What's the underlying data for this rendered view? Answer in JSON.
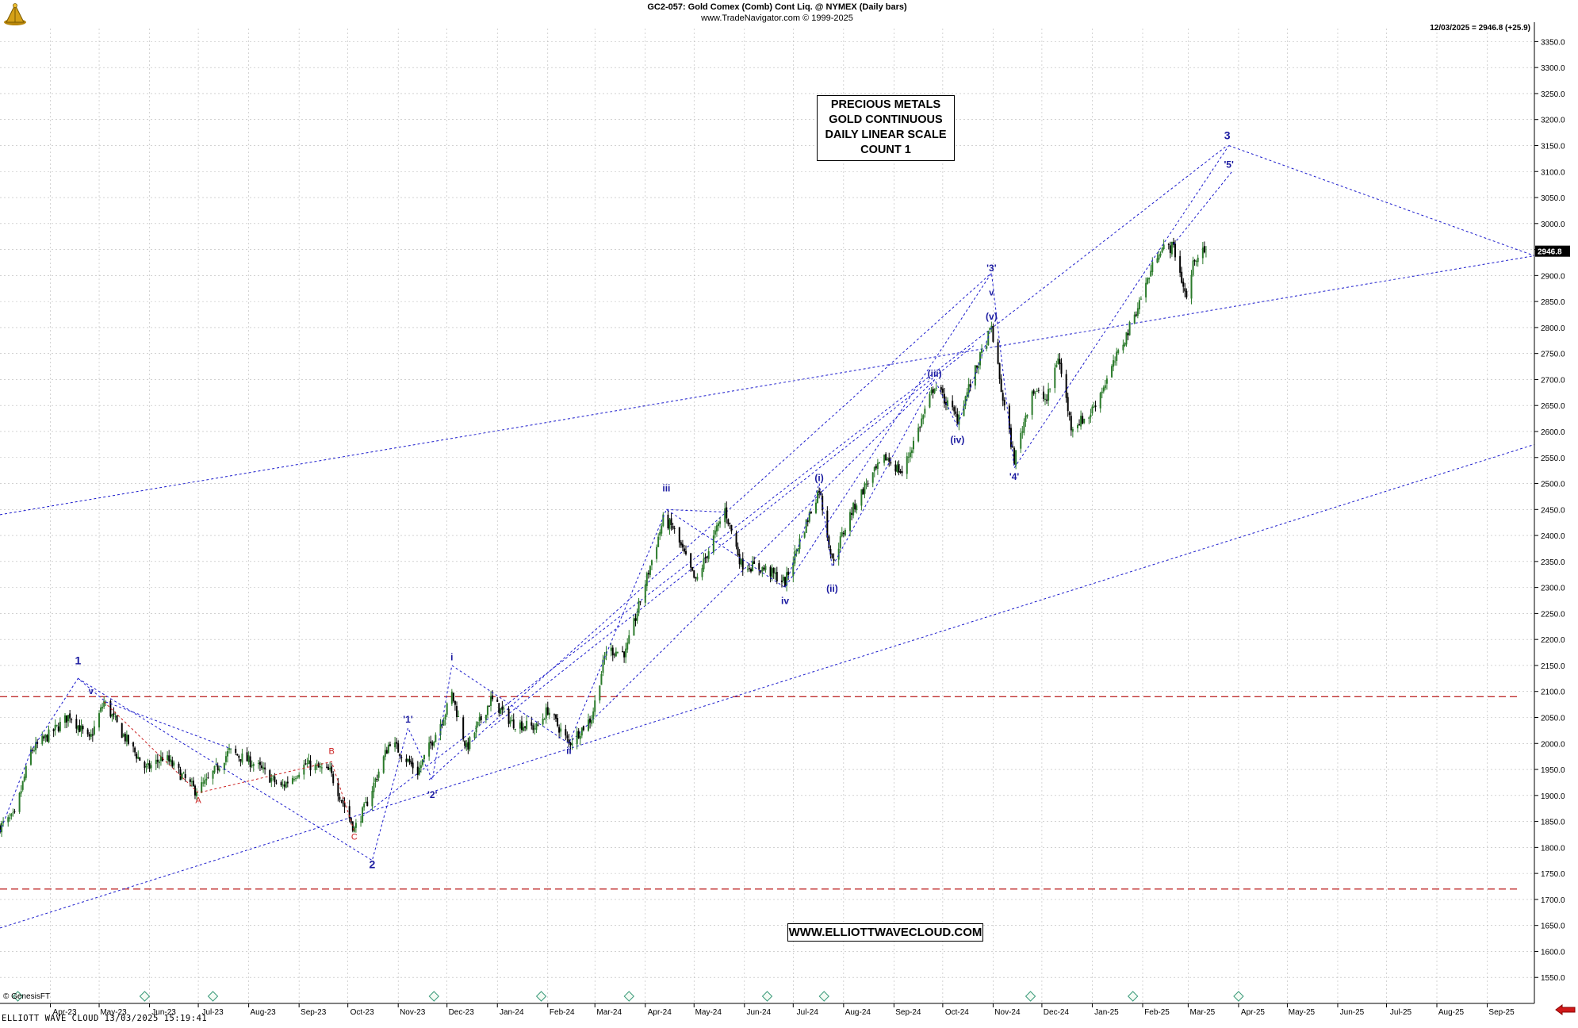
{
  "header": {
    "title": "GC2-057:  Gold Comex (Comb) Cont Liq. @ NYMEX  (Daily bars)",
    "subtitle": "www.TradeNavigator.com © 1999-2025"
  },
  "last_readout": "12/03/2025 = 2946.8 (+25.9)",
  "title_box": [
    "PRECIOUS METALS",
    "GOLD CONTINUOUS",
    "DAILY LINEAR SCALE",
    "COUNT 1"
  ],
  "website": "WWW.ELLIOTTWAVECLOUD.COM",
  "copyright": "© GenesisFT",
  "footer": "ELLIOTT WAVE CLOUD   13/03/2025 15:19:41",
  "colors": {
    "bull_candle": "#2a7a2a",
    "bear_candle": "#000000",
    "wave_label": "#1a1aa0",
    "corrective_label": "#cc2222",
    "trend_line": "#1a1acc",
    "support_line": "#c03030",
    "grid": "#b8b8b8",
    "background": "#ffffff"
  },
  "chart_data": {
    "type": "candlestick",
    "instrument": "GC2-057 Gold Comex (Comb) Cont Liq. @ NYMEX",
    "interval": "Daily bars",
    "scale": "linear",
    "ylim": [
      1500,
      3375
    ],
    "y_ticks": [
      1550,
      1600,
      1650,
      1700,
      1750,
      1800,
      1850,
      1900,
      1950,
      2000,
      2050,
      2100,
      2150,
      2200,
      2250,
      2300,
      2350,
      2400,
      2450,
      2500,
      2550,
      2600,
      2650,
      2700,
      2750,
      2800,
      2850,
      2900,
      2950,
      3000,
      3050,
      3100,
      3150,
      3200,
      3250,
      3300,
      3350
    ],
    "y_tick_labels": [
      "1550.0",
      "1600.0",
      "1650.0",
      "1700.0",
      "1750.0",
      "1800.0",
      "1850.0",
      "1900.0",
      "1950.0",
      "2000.0",
      "2050.0",
      "2100.0",
      "2150.0",
      "2200.0",
      "2250.0",
      "2300.0",
      "2350.0",
      "2400.0",
      "2450.0",
      "2500.0",
      "2550.0",
      "2600.0",
      "2650.0",
      "2700.0",
      "2750.0",
      "2800.0",
      "2850.0",
      "2900.0",
      "2950.0",
      "3000.0",
      "3050.0",
      "3100.0",
      "3150.0",
      "3200.0",
      "3250.0",
      "3300.0",
      "3350.0"
    ],
    "x_range": [
      "2023-03-01",
      "2025-09-30"
    ],
    "x_labels": [
      {
        "label": "Apr-23",
        "date": "2023-04-01"
      },
      {
        "label": "May-23",
        "date": "2023-05-01"
      },
      {
        "label": "Jun-23",
        "date": "2023-06-01"
      },
      {
        "label": "Jul-23",
        "date": "2023-07-01"
      },
      {
        "label": "Aug-23",
        "date": "2023-08-01"
      },
      {
        "label": "Sep-23",
        "date": "2023-09-01"
      },
      {
        "label": "Oct-23",
        "date": "2023-10-01"
      },
      {
        "label": "Nov-23",
        "date": "2023-11-01"
      },
      {
        "label": "Dec-23",
        "date": "2023-12-01"
      },
      {
        "label": "Jan-24",
        "date": "2024-01-01"
      },
      {
        "label": "Feb-24",
        "date": "2024-02-01"
      },
      {
        "label": "Mar-24",
        "date": "2024-03-01"
      },
      {
        "label": "Apr-24",
        "date": "2024-04-01"
      },
      {
        "label": "May-24",
        "date": "2024-05-01"
      },
      {
        "label": "Jun-24",
        "date": "2024-06-01"
      },
      {
        "label": "Jul-24",
        "date": "2024-07-01"
      },
      {
        "label": "Aug-24",
        "date": "2024-08-01"
      },
      {
        "label": "Sep-24",
        "date": "2024-09-01"
      },
      {
        "label": "Oct-24",
        "date": "2024-10-01"
      },
      {
        "label": "Nov-24",
        "date": "2024-11-01"
      },
      {
        "label": "Dec-24",
        "date": "2024-12-01"
      },
      {
        "label": "Jan-25",
        "date": "2025-01-01"
      },
      {
        "label": "Feb-25",
        "date": "2025-02-01"
      },
      {
        "label": "Mar-25",
        "date": "2025-03-01"
      },
      {
        "label": "Apr-25",
        "date": "2025-04-01"
      },
      {
        "label": "May-25",
        "date": "2025-05-01"
      },
      {
        "label": "Jun-25",
        "date": "2025-06-01"
      },
      {
        "label": "Jul-25",
        "date": "2025-07-01"
      },
      {
        "label": "Aug-25",
        "date": "2025-08-01"
      },
      {
        "label": "Sep-25",
        "date": "2025-09-01"
      }
    ],
    "price_path": [
      [
        "2023-03-01",
        1840
      ],
      [
        "2023-03-10",
        1860
      ],
      [
        "2023-03-20",
        1985
      ],
      [
        "2023-04-05",
        2030
      ],
      [
        "2023-04-13",
        2055
      ],
      [
        "2023-04-25",
        2005
      ],
      [
        "2023-05-04",
        2080
      ],
      [
        "2023-05-15",
        2020
      ],
      [
        "2023-05-30",
        1950
      ],
      [
        "2023-06-10",
        1975
      ],
      [
        "2023-06-29",
        1910
      ],
      [
        "2023-07-06",
        1925
      ],
      [
        "2023-07-20",
        1985
      ],
      [
        "2023-08-05",
        1960
      ],
      [
        "2023-08-21",
        1915
      ],
      [
        "2023-09-05",
        1960
      ],
      [
        "2023-09-20",
        1945
      ],
      [
        "2023-10-05",
        1835
      ],
      [
        "2023-10-12",
        1880
      ],
      [
        "2023-10-27",
        2005
      ],
      [
        "2023-11-13",
        1945
      ],
      [
        "2023-11-30",
        2060
      ],
      [
        "2023-12-04",
        2095
      ],
      [
        "2023-12-13",
        1990
      ],
      [
        "2023-12-28",
        2085
      ],
      [
        "2024-01-10",
        2040
      ],
      [
        "2024-01-25",
        2030
      ],
      [
        "2024-02-01",
        2065
      ],
      [
        "2024-02-14",
        2000
      ],
      [
        "2024-02-28",
        2050
      ],
      [
        "2024-03-08",
        2180
      ],
      [
        "2024-03-20",
        2175
      ],
      [
        "2024-04-12",
        2430
      ],
      [
        "2024-04-18",
        2415
      ],
      [
        "2024-05-02",
        2310
      ],
      [
        "2024-05-20",
        2450
      ],
      [
        "2024-05-30",
        2345
      ],
      [
        "2024-06-14",
        2335
      ],
      [
        "2024-06-26",
        2310
      ],
      [
        "2024-07-05",
        2390
      ],
      [
        "2024-07-17",
        2490
      ],
      [
        "2024-07-25",
        2350
      ],
      [
        "2024-08-05",
        2440
      ],
      [
        "2024-08-15",
        2500
      ],
      [
        "2024-08-27",
        2550
      ],
      [
        "2024-09-06",
        2520
      ],
      [
        "2024-09-26",
        2690
      ],
      [
        "2024-10-10",
        2625
      ],
      [
        "2024-10-31",
        2800
      ],
      [
        "2024-11-06",
        2680
      ],
      [
        "2024-11-14",
        2545
      ],
      [
        "2024-11-25",
        2680
      ],
      [
        "2024-12-04",
        2660
      ],
      [
        "2024-12-11",
        2745
      ],
      [
        "2024-12-19",
        2610
      ],
      [
        "2024-12-30",
        2630
      ],
      [
        "2025-01-10",
        2700
      ],
      [
        "2025-01-24",
        2800
      ],
      [
        "2025-02-11",
        2950
      ],
      [
        "2025-02-20",
        2955
      ],
      [
        "2025-02-28",
        2855
      ],
      [
        "2025-03-05",
        2935
      ],
      [
        "2025-03-12",
        2946.8
      ]
    ],
    "last_close": 2946.8,
    "last_change": 25.9,
    "last_date": "12/03/2025",
    "wave_labels": [
      {
        "text": "1",
        "date": "2023-04-18",
        "price": 2152,
        "color": "wave",
        "bold": true,
        "size": 14
      },
      {
        "text": "v",
        "date": "2023-04-26",
        "price": 2095,
        "color": "wave",
        "bold": true,
        "size": 11
      },
      {
        "text": "A",
        "date": "2023-07-01",
        "price": 1885,
        "color": "corrective",
        "bold": false,
        "size": 11
      },
      {
        "text": "B",
        "date": "2023-09-21",
        "price": 1980,
        "color": "corrective",
        "bold": false,
        "size": 11
      },
      {
        "text": "C",
        "date": "2023-10-05",
        "price": 1815,
        "color": "corrective",
        "bold": false,
        "size": 11
      },
      {
        "text": "2",
        "date": "2023-10-16",
        "price": 1760,
        "color": "wave",
        "bold": true,
        "size": 14
      },
      {
        "text": "'1'",
        "date": "2023-11-07",
        "price": 2040,
        "color": "wave",
        "bold": true,
        "size": 12
      },
      {
        "text": "'2'",
        "date": "2023-11-22",
        "price": 1895,
        "color": "wave",
        "bold": true,
        "size": 12
      },
      {
        "text": "i",
        "date": "2023-12-04",
        "price": 2160,
        "color": "wave",
        "bold": true,
        "size": 12
      },
      {
        "text": "ii",
        "date": "2024-02-14",
        "price": 1980,
        "color": "wave",
        "bold": true,
        "size": 12
      },
      {
        "text": "iii",
        "date": "2024-04-14",
        "price": 2485,
        "color": "wave",
        "bold": true,
        "size": 12
      },
      {
        "text": "iv",
        "date": "2024-06-26",
        "price": 2268,
        "color": "wave",
        "bold": true,
        "size": 12
      },
      {
        "text": "(i)",
        "date": "2024-07-17",
        "price": 2505,
        "color": "wave",
        "bold": true,
        "size": 12
      },
      {
        "text": "(ii)",
        "date": "2024-07-25",
        "price": 2292,
        "color": "wave",
        "bold": true,
        "size": 12
      },
      {
        "text": "(iii)",
        "date": "2024-09-26",
        "price": 2705,
        "color": "wave",
        "bold": true,
        "size": 12
      },
      {
        "text": "(iv)",
        "date": "2024-10-10",
        "price": 2578,
        "color": "wave",
        "bold": true,
        "size": 12
      },
      {
        "text": "'3'",
        "date": "2024-10-31",
        "price": 2908,
        "color": "wave",
        "bold": true,
        "size": 12
      },
      {
        "text": "v",
        "date": "2024-10-31",
        "price": 2862,
        "color": "wave",
        "bold": true,
        "size": 11
      },
      {
        "text": "(v)",
        "date": "2024-10-31",
        "price": 2815,
        "color": "wave",
        "bold": true,
        "size": 12
      },
      {
        "text": "'4'",
        "date": "2024-11-14",
        "price": 2507,
        "color": "wave",
        "bold": true,
        "size": 12
      },
      {
        "text": "3",
        "date": "2025-03-25",
        "price": 3162,
        "color": "wave",
        "bold": true,
        "size": 14
      },
      {
        "text": "'5'",
        "date": "2025-03-26",
        "price": 3107,
        "color": "wave",
        "bold": true,
        "size": 12
      }
    ],
    "wave_lines": [
      {
        "color": "wave",
        "points": [
          [
            "2023-03-01",
            1830
          ],
          [
            "2023-03-20",
            1985
          ],
          [
            "2023-04-18",
            2125
          ],
          [
            "2023-05-05",
            2080
          ],
          [
            "2023-07-21",
            1990
          ]
        ]
      },
      {
        "color": "wave",
        "points": [
          [
            "2023-04-18",
            2125
          ],
          [
            "2023-10-16",
            1775
          ],
          [
            "2023-11-07",
            2030
          ],
          [
            "2023-11-22",
            1930
          ],
          [
            "2023-12-04",
            2150
          ],
          [
            "2024-02-14",
            2000
          ],
          [
            "2024-04-14",
            2450
          ],
          [
            "2024-06-26",
            2300
          ],
          [
            "2024-10-31",
            2905
          ],
          [
            "2024-11-14",
            2530
          ],
          [
            "2025-03-26",
            3150
          ]
        ]
      },
      {
        "color": "wave",
        "points": [
          [
            "2024-04-14",
            2450
          ],
          [
            "2024-05-20",
            2445
          ]
        ]
      },
      {
        "color": "wave",
        "points": [
          [
            "2024-06-26",
            2300
          ],
          [
            "2024-07-17",
            2500
          ],
          [
            "2024-07-25",
            2340
          ],
          [
            "2024-09-26",
            2700
          ],
          [
            "2024-10-10",
            2610
          ],
          [
            "2024-10-31",
            2800
          ]
        ]
      },
      {
        "color": "wave",
        "points": [
          [
            "2025-02-20",
            2960
          ],
          [
            "2025-03-28",
            3100
          ]
        ]
      },
      {
        "color": "corrective",
        "points": [
          [
            "2023-05-04",
            2080
          ],
          [
            "2023-07-01",
            1905
          ],
          [
            "2023-09-21",
            1965
          ],
          [
            "2023-10-05",
            1830
          ]
        ]
      }
    ],
    "trend_lines": [
      {
        "points": [
          [
            "2023-03-01",
            2440
          ],
          [
            "2025-09-30",
            2938
          ]
        ]
      },
      {
        "points": [
          [
            "2023-03-01",
            1645
          ],
          [
            "2025-09-30",
            2575
          ]
        ]
      },
      {
        "points": [
          [
            "2023-10-10",
            1860
          ],
          [
            "2025-03-25",
            3150
          ]
        ]
      },
      {
        "points": [
          [
            "2023-11-20",
            1930
          ],
          [
            "2024-10-31",
            2905
          ]
        ]
      },
      {
        "points": [
          [
            "2023-12-28",
            2030
          ],
          [
            "2024-10-20",
            2765
          ]
        ]
      },
      {
        "points": [
          [
            "2024-02-14",
            2000
          ],
          [
            "2024-09-26",
            2700
          ]
        ]
      },
      {
        "points": [
          [
            "2025-03-26",
            3150
          ],
          [
            "2025-09-30",
            2938
          ]
        ]
      }
    ],
    "support_lines": [
      {
        "price": 2090
      },
      {
        "price": 1720
      }
    ],
    "event_marker_dates": [
      "2023-03-12",
      "2023-05-29",
      "2023-07-10",
      "2023-11-23",
      "2024-01-28",
      "2024-03-22",
      "2024-06-15",
      "2024-07-20",
      "2024-11-24",
      "2025-01-26",
      "2025-04-01"
    ]
  }
}
